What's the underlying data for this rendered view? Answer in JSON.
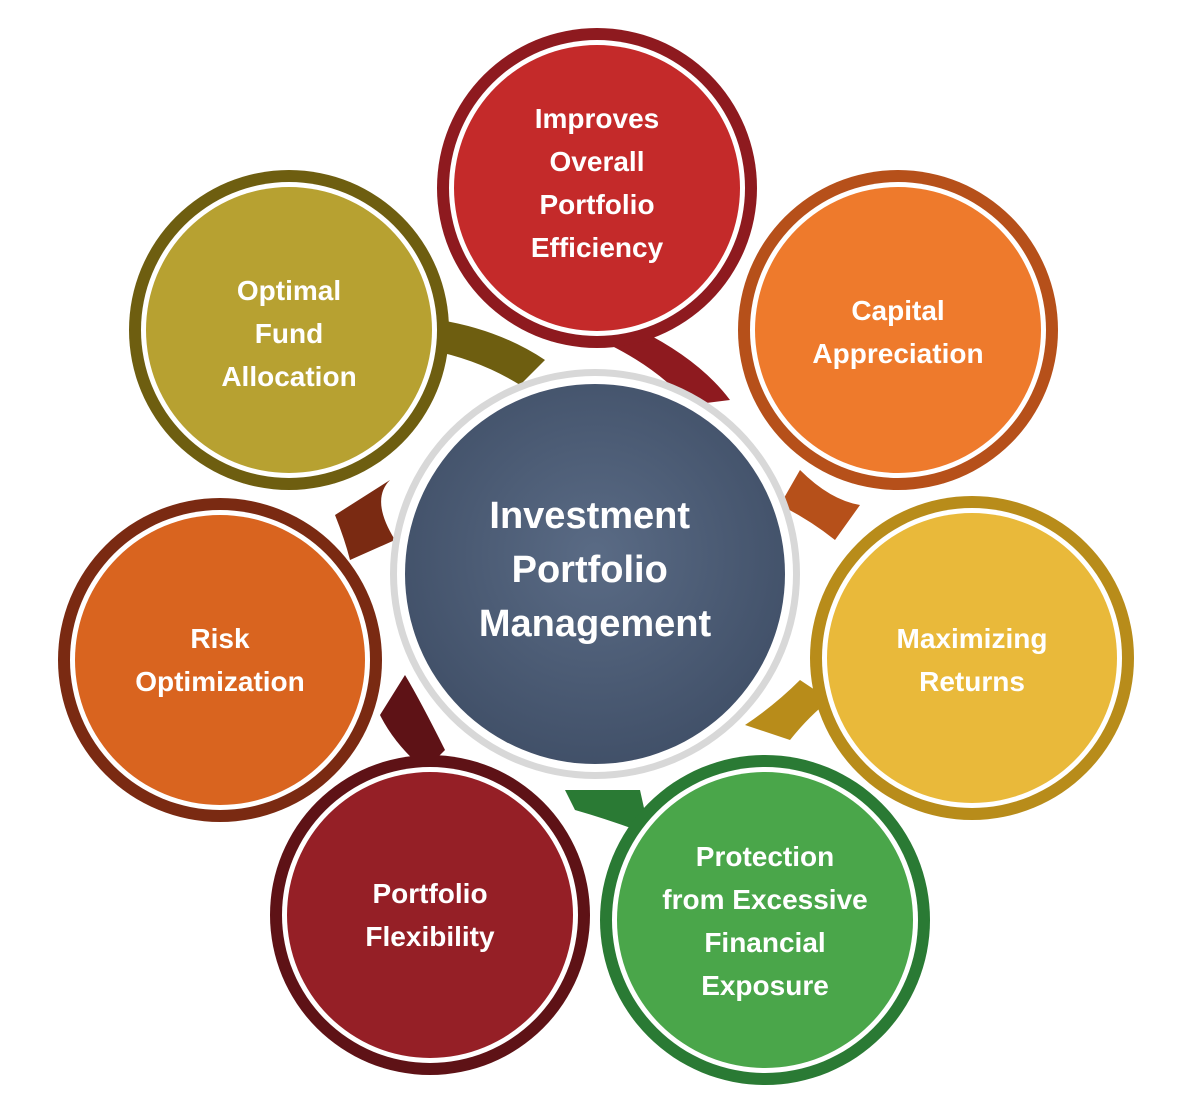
{
  "center": {
    "lines": [
      "Investment",
      "Portfolio",
      "Management"
    ],
    "color": "#4a5a72"
  },
  "petals": [
    {
      "id": "improves-overall-portfolio-efficiency",
      "lines": [
        "Improves",
        "Overall",
        "Portfolio",
        "Efficiency"
      ],
      "color": "#c42a2a",
      "ring": "#8e1a1f"
    },
    {
      "id": "capital-appreciation",
      "lines": [
        "Capital",
        "Appreciation"
      ],
      "color": "#ee7a2c",
      "ring": "#b6501a"
    },
    {
      "id": "maximizing-returns",
      "lines": [
        "Maximizing",
        "Returns"
      ],
      "color": "#e9b93a",
      "ring": "#b88c1a"
    },
    {
      "id": "protection-from-excessive-financial-exposure",
      "lines": [
        "Protection",
        "from Excessive",
        "Financial",
        "Exposure"
      ],
      "color": "#4aa64a",
      "ring": "#2a7a34"
    },
    {
      "id": "portfolio-flexibility",
      "lines": [
        "Portfolio",
        "Flexibility"
      ],
      "color": "#951f26",
      "ring": "#5e1216"
    },
    {
      "id": "risk-optimization",
      "lines": [
        "Risk",
        "Optimization"
      ],
      "color": "#d9641f",
      "ring": "#7a2a12"
    },
    {
      "id": "optimal-fund-allocation",
      "lines": [
        "Optimal",
        "Fund",
        "Allocation"
      ],
      "color": "#b7a131",
      "ring": "#6e5e10"
    }
  ]
}
